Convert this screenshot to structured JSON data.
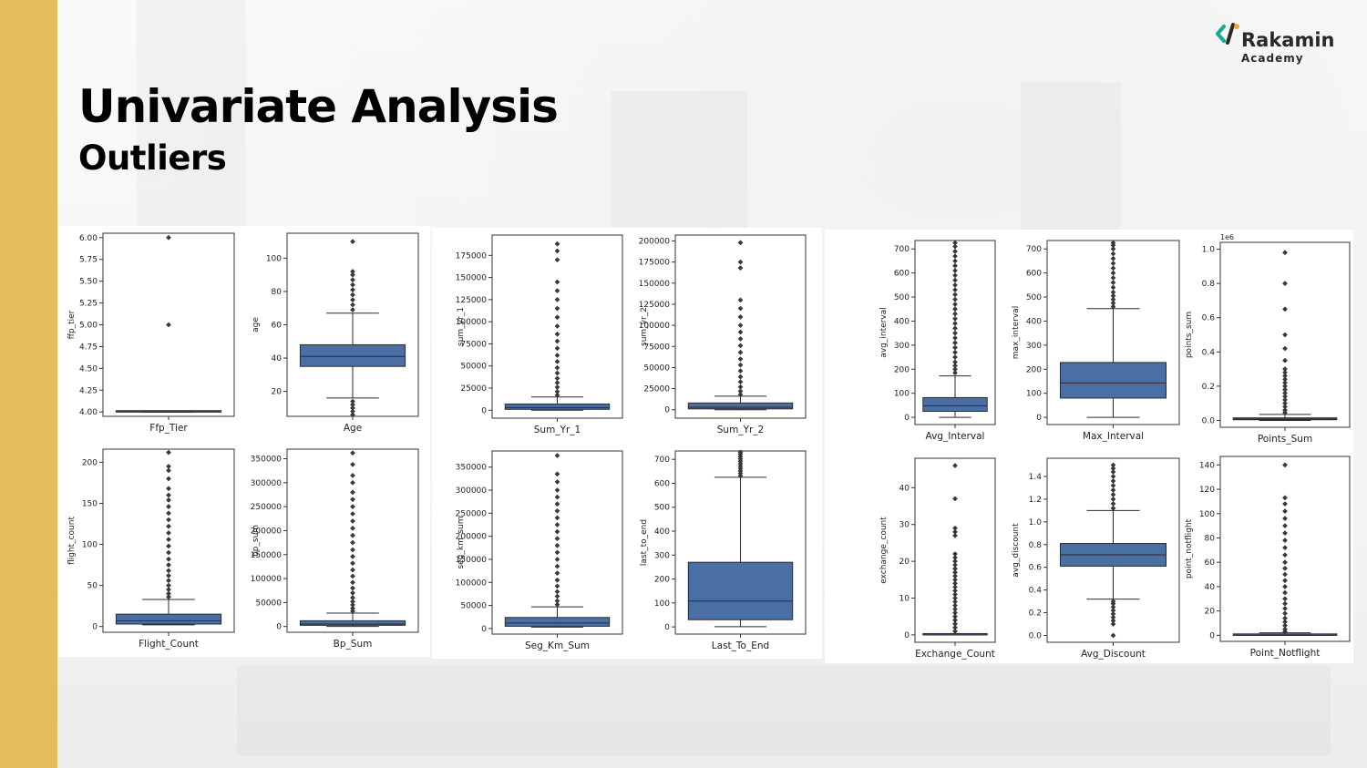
{
  "slide": {
    "title": "Univariate Analysis",
    "subtitle": "Outliers"
  },
  "logo": {
    "name": "Rakamin",
    "sub": "Academy",
    "mark": "</"
  },
  "colors": {
    "sidebar": "#e6bd5c",
    "box_fill": "#4a6fa5",
    "box_edge": "#2b2b2b",
    "logo_teal": "#16a99b",
    "logo_orange": "#f0a732"
  },
  "chart_data": [
    {
      "type": "box",
      "xlabel": "Ffp_Tier",
      "ylabel": "ffp_tier",
      "ylim": [
        3.95,
        6.05
      ],
      "ticks": [
        4.0,
        4.25,
        4.5,
        4.75,
        5.0,
        5.25,
        5.5,
        5.75,
        6.0
      ],
      "box": {
        "q1": 4,
        "median": 4,
        "q3": 4,
        "whisker_low": 4,
        "whisker_high": 4
      },
      "outliers": [
        5,
        6
      ]
    },
    {
      "type": "box",
      "xlabel": "Age",
      "ylabel": "age",
      "ylim": [
        5,
        115
      ],
      "ticks": [
        20,
        40,
        60,
        80,
        100
      ],
      "box": {
        "q1": 35,
        "median": 41,
        "q3": 48,
        "whisker_low": 16,
        "whisker_high": 67
      },
      "outliers": [
        6,
        8,
        10,
        12,
        14,
        69,
        72,
        75,
        78,
        81,
        84,
        87,
        90,
        92,
        110
      ]
    },
    {
      "type": "box",
      "xlabel": "Sum_Yr_1",
      "ylabel": "sum_yr_1",
      "ylim": [
        -9000,
        198000
      ],
      "ticks": [
        0,
        25000,
        50000,
        75000,
        100000,
        125000,
        150000,
        175000
      ],
      "box": {
        "q1": 1000,
        "median": 3000,
        "q3": 7000,
        "whisker_low": 0,
        "whisker_high": 15000
      },
      "outliers": [
        17000,
        21000,
        26000,
        31000,
        36000,
        42000,
        48000,
        55000,
        62000,
        70000,
        78000,
        86000,
        95000,
        105000,
        115000,
        125000,
        135000,
        145000,
        170000,
        180000,
        188000
      ]
    },
    {
      "type": "box",
      "xlabel": "Sum_Yr_2",
      "ylabel": "sum_yr_2",
      "ylim": [
        -10000,
        207000
      ],
      "ticks": [
        0,
        25000,
        50000,
        75000,
        100000,
        125000,
        150000,
        175000,
        200000
      ],
      "box": {
        "q1": 1000,
        "median": 3000,
        "q3": 8000,
        "whisker_low": 0,
        "whisker_high": 16000
      },
      "outliers": [
        18000,
        22000,
        27000,
        33000,
        39000,
        46000,
        53000,
        60000,
        68000,
        76000,
        84000,
        92000,
        100000,
        110000,
        120000,
        130000,
        168000,
        175000,
        198000
      ]
    },
    {
      "type": "box",
      "xlabel": "Avg_Interval",
      "ylabel": "avg_interval",
      "ylim": [
        -30,
        735
      ],
      "ticks": [
        0,
        100,
        200,
        300,
        400,
        500,
        600,
        700
      ],
      "box": {
        "q1": 25,
        "median": 48,
        "q3": 82,
        "whisker_low": 0,
        "whisker_high": 172
      },
      "outliers": [
        185,
        200,
        215,
        230,
        250,
        270,
        290,
        310,
        330,
        350,
        370,
        390,
        410,
        430,
        450,
        470,
        490,
        510,
        530,
        550,
        570,
        590,
        610,
        630,
        650,
        670,
        690,
        710,
        725
      ]
    },
    {
      "type": "box",
      "xlabel": "Max_Interval",
      "ylabel": "max_interval",
      "ylim": [
        -30,
        735
      ],
      "ticks": [
        0,
        100,
        200,
        300,
        400,
        500,
        600,
        700
      ],
      "box": {
        "q1": 80,
        "median": 143,
        "q3": 228,
        "whisker_low": 0,
        "whisker_high": 452
      },
      "outliers": [
        460,
        475,
        490,
        505,
        520,
        540,
        560,
        580,
        600,
        620,
        640,
        660,
        680,
        700,
        715,
        725
      ]
    },
    {
      "type": "box",
      "xlabel": "Points_Sum",
      "ylabel": "points_sum",
      "ylim": [
        -0.04,
        1.04
      ],
      "ticks": [
        0.0,
        0.2,
        0.4,
        0.6,
        0.8,
        1.0
      ],
      "scale_label": "1e6",
      "box": {
        "q1": 0.004,
        "median": 0.008,
        "q3": 0.015,
        "whisker_low": 0,
        "whisker_high": 0.035
      },
      "outliers": [
        0.045,
        0.06,
        0.08,
        0.1,
        0.12,
        0.14,
        0.16,
        0.18,
        0.2,
        0.22,
        0.24,
        0.26,
        0.28,
        0.3,
        0.35,
        0.42,
        0.5,
        0.65,
        0.8,
        0.98
      ]
    },
    {
      "type": "box",
      "xlabel": "Flight_Count",
      "ylabel": "flight_count",
      "ylim": [
        -7,
        216
      ],
      "ticks": [
        0,
        50,
        100,
        150,
        200
      ],
      "box": {
        "q1": 3,
        "median": 7,
        "q3": 15,
        "whisker_low": 2,
        "whisker_high": 33
      },
      "outliers": [
        36,
        40,
        45,
        50,
        56,
        62,
        68,
        75,
        82,
        90,
        98,
        106,
        114,
        122,
        130,
        138,
        146,
        154,
        160,
        168,
        180,
        190,
        195,
        212
      ]
    },
    {
      "type": "box",
      "xlabel": "Bp_Sum",
      "ylabel": "bp_sum",
      "ylim": [
        -12000,
        370000
      ],
      "ticks": [
        0,
        50000,
        100000,
        150000,
        200000,
        250000,
        300000,
        350000
      ],
      "box": {
        "q1": 2500,
        "median": 5000,
        "q3": 12000,
        "whisker_low": 0,
        "whisker_high": 28000
      },
      "outliers": [
        32000,
        38000,
        45000,
        52000,
        60000,
        70000,
        80000,
        92000,
        105000,
        118000,
        132000,
        146000,
        160000,
        175000,
        190000,
        205000,
        220000,
        235000,
        250000,
        265000,
        280000,
        300000,
        315000,
        338000,
        362000
      ]
    },
    {
      "type": "box",
      "xlabel": "Seg_Km_Sum",
      "ylabel": "seg_km_sum",
      "ylim": [
        -12000,
        385000
      ],
      "ticks": [
        0,
        50000,
        100000,
        150000,
        200000,
        250000,
        300000,
        350000
      ],
      "box": {
        "q1": 5000,
        "median": 12000,
        "q3": 24000,
        "whisker_low": 3000,
        "whisker_high": 47000
      },
      "outliers": [
        52000,
        60000,
        70000,
        80000,
        92000,
        105000,
        120000,
        135000,
        150000,
        165000,
        180000,
        195000,
        210000,
        225000,
        240000,
        255000,
        270000,
        285000,
        300000,
        318000,
        335000,
        375000
      ]
    },
    {
      "type": "box",
      "xlabel": "Last_To_End",
      "ylabel": "last_to_end",
      "ylim": [
        -30,
        735
      ],
      "ticks": [
        0,
        100,
        200,
        300,
        400,
        500,
        600,
        700
      ],
      "box": {
        "q1": 30,
        "median": 108,
        "q3": 270,
        "whisker_low": 1,
        "whisker_high": 625
      },
      "outliers": [
        632,
        642,
        652,
        662,
        672,
        682,
        692,
        702,
        712,
        722,
        730
      ]
    },
    {
      "type": "box",
      "xlabel": "Exchange_Count",
      "ylabel": "exchange_count",
      "ylim": [
        -2,
        48
      ],
      "ticks": [
        0,
        10,
        20,
        30,
        40
      ],
      "box": {
        "q1": 0,
        "median": 0,
        "q3": 0,
        "whisker_low": 0,
        "whisker_high": 0
      },
      "outliers": [
        1,
        2,
        3,
        4,
        5,
        6,
        7,
        8,
        9,
        10,
        11,
        12,
        13,
        14,
        15,
        16,
        17,
        18,
        19,
        20,
        21,
        22,
        27,
        28,
        29,
        37,
        46
      ]
    },
    {
      "type": "box",
      "xlabel": "Avg_Discount",
      "ylabel": "avg_discount",
      "ylim": [
        -0.06,
        1.56
      ],
      "ticks": [
        0.0,
        0.2,
        0.4,
        0.6,
        0.8,
        1.0,
        1.2,
        1.4
      ],
      "box": {
        "q1": 0.61,
        "median": 0.71,
        "q3": 0.81,
        "whisker_low": 0.32,
        "whisker_high": 1.1
      },
      "outliers": [
        0.0,
        0.1,
        0.13,
        0.16,
        0.19,
        0.22,
        0.25,
        0.28,
        0.3,
        1.12,
        1.16,
        1.2,
        1.24,
        1.28,
        1.32,
        1.36,
        1.4,
        1.44,
        1.47,
        1.5
      ]
    },
    {
      "type": "box",
      "xlabel": "Point_Notflight",
      "ylabel": "point_notflight",
      "ylim": [
        -5,
        147
      ],
      "ticks": [
        0,
        20,
        40,
        60,
        80,
        100,
        120,
        140
      ],
      "box": {
        "q1": 0,
        "median": 0,
        "q3": 1,
        "whisker_low": 0,
        "whisker_high": 2
      },
      "outliers": [
        3,
        5,
        8,
        11,
        14,
        18,
        22,
        26,
        30,
        35,
        40,
        45,
        50,
        55,
        60,
        66,
        72,
        78,
        84,
        90,
        96,
        102,
        108,
        113,
        140
      ]
    }
  ]
}
